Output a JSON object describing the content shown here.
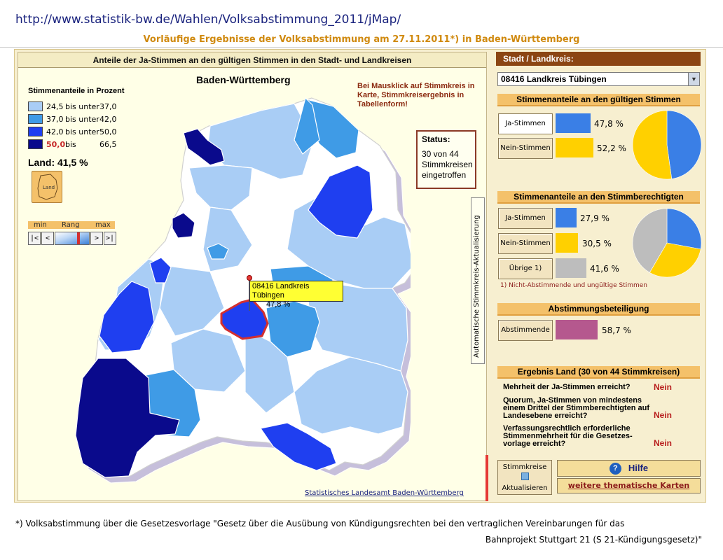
{
  "page": {
    "url": "http://www.statistik-bw.de/Wahlen/Volksabstimmung_2011/jMap/",
    "subtitle": "Vorläufige Ergebnisse der Volksabstimmung am 27.11.2011*) in Baden-Württemberg"
  },
  "map_panel": {
    "title": "Anteile der Ja-Stimmen an den gültigen Stimmen in den Stadt- und Landkreisen",
    "region_name": "Baden-Württemberg",
    "legend_title": "Stimmenanteile in Prozent",
    "legend": [
      {
        "lo": "24,5",
        "word": "bis unter",
        "hi": "37,0",
        "color": "#a9cdf5"
      },
      {
        "lo": "37,0",
        "word": "bis unter",
        "hi": "42,0",
        "color": "#3f9be6"
      },
      {
        "lo": "42,0",
        "word": "bis unter",
        "hi": "50,0",
        "color": "#1f3ff0"
      },
      {
        "lo": "50,0",
        "word": "bis",
        "hi": "66,5",
        "color": "#0a0a8c",
        "lo_color": "#c62828"
      }
    ],
    "land_label": "Land:",
    "land_value": "41,5 %",
    "land_icon_label": "Land",
    "rang": {
      "min": "min",
      "label": "Rang",
      "max": "max"
    },
    "nav_buttons": [
      "|<",
      "<",
      ">",
      ">|"
    ],
    "note": "Bei Mausklick auf Stimmkreis in Karte, Stimmkreisergebnis in Tabellenform!",
    "status_title": "Status:",
    "status_text": "30 von 44 Stimmkreisen eingetroffen",
    "vertical_label": "Automatische Stimmkreis-Aktualisierung",
    "tooltip_name": "08416 Landkreis Tübingen",
    "tooltip_value": "47,8 %",
    "credit": "Statistisches Landesamt Baden-Württemberg"
  },
  "right_panel": {
    "header": "Stadt / Landkreis:",
    "selected": "08416 Landkreis Tübingen",
    "section1": {
      "title": "Stimmenanteile an den gültigen Stimmen",
      "rows": [
        {
          "label": "Ja-Stimmen",
          "value": "47,8 %",
          "pct": 47.8,
          "color": "#3a7fe6"
        },
        {
          "label": "Nein-Stimmen",
          "value": "52,2 %",
          "pct": 52.2,
          "color": "#ffd000"
        }
      ]
    },
    "section2": {
      "title": "Stimmenanteile an den Stimmberechtigten",
      "rows": [
        {
          "label": "Ja-Stimmen",
          "value": "27,9 %",
          "pct": 27.9,
          "color": "#3a7fe6"
        },
        {
          "label": "Nein-Stimmen",
          "value": "30,5 %",
          "pct": 30.5,
          "color": "#ffd000"
        },
        {
          "label": "Übrige 1)",
          "value": "41,6 %",
          "pct": 41.6,
          "color": "#bdbdbd"
        }
      ],
      "footnote": "1) Nicht-Abstimmende und ungültige Stimmen"
    },
    "section3": {
      "title": "Abstimmungsbeteiligung",
      "rows": [
        {
          "label": "Abstimmende",
          "value": "58,7 %",
          "pct": 58.7,
          "color": "#b5588e"
        }
      ]
    },
    "section4": {
      "title": "Ergebnis Land  (30 von 44 Stimmkreisen)",
      "rows": [
        {
          "q": "Mehrheit der Ja-Stimmen erreicht?",
          "a": "Nein"
        },
        {
          "q": "Quorum, Ja-Stimmen von mindestens einem Drittel der Stimmberechtigten auf Landesebene erreicht?",
          "a": "Nein"
        },
        {
          "q": "Verfassungsrechtlich erforderliche Stimmenmehrheit für die Gesetzes-vorlage erreicht?",
          "a": "Nein"
        }
      ]
    },
    "stimmkreise_btn": {
      "line1": "Stimmkreise",
      "line2": "Aktualisieren"
    },
    "hilfe": "Hilfe",
    "karten": "weitere thematische Karten"
  },
  "footnote": {
    "line1": "*) Volksabstimmung über die Gesetzesvorlage \"Gesetz über die Ausübung von Kündigungsrechten bei den vertraglichen Vereinbarungen für das",
    "line2": "Bahnprojekt Stuttgart 21 (S 21-Kündigungsgesetz)\""
  }
}
